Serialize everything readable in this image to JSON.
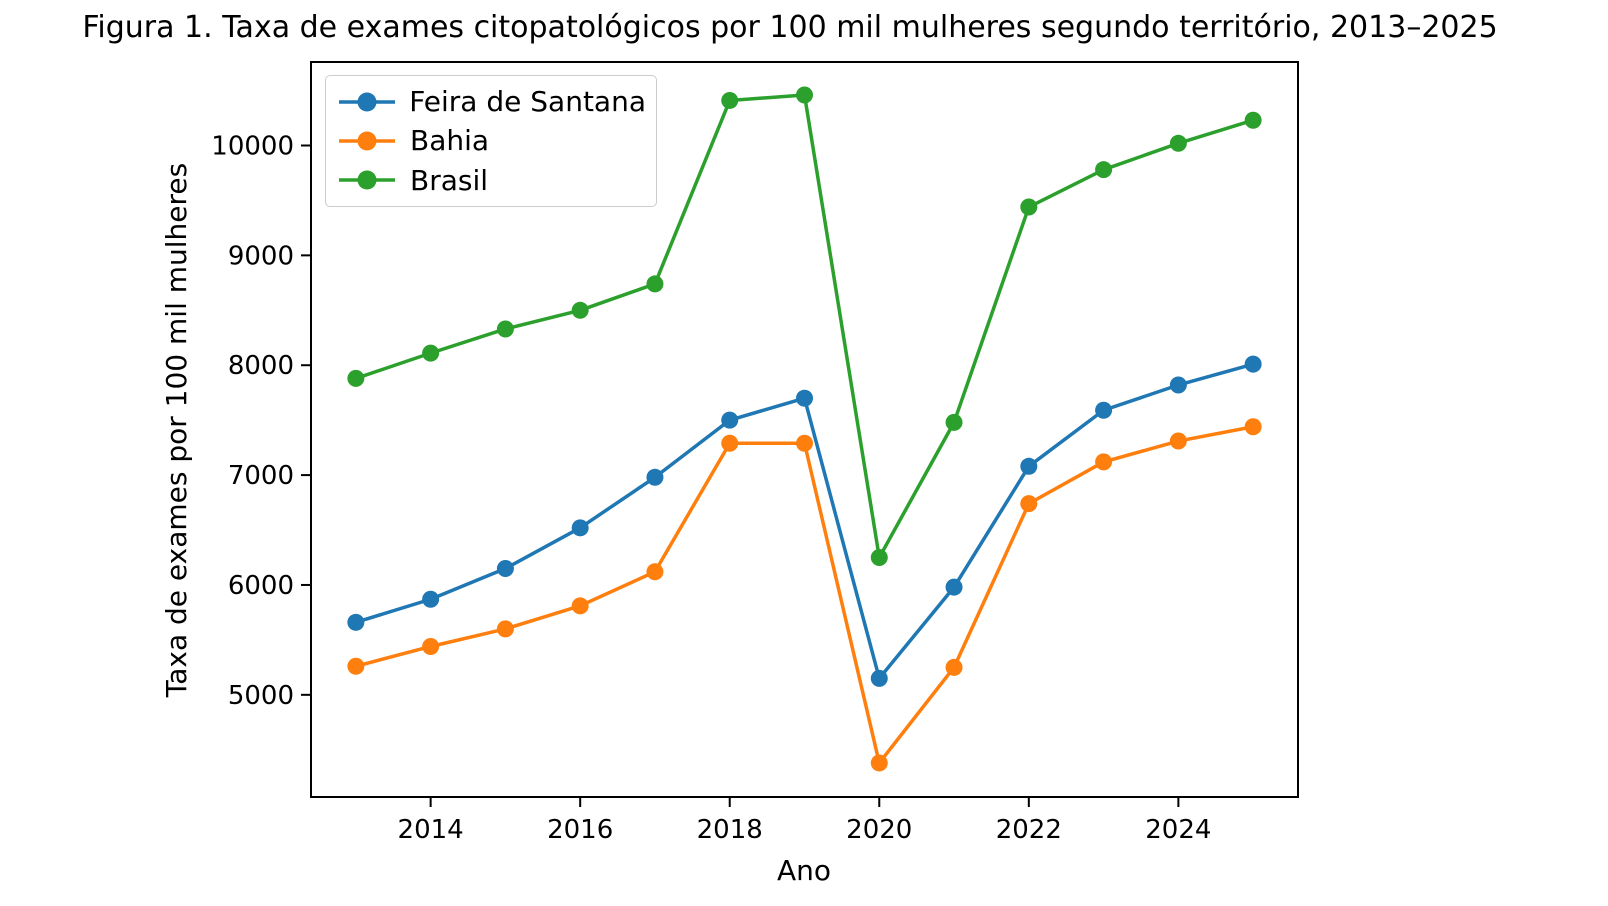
{
  "chart_data": {
    "type": "line",
    "title": "Figura 1. Taxa de exames citopatológicos por 100 mil mulheres segundo território, 2013–2025",
    "xlabel": "Ano",
    "ylabel": "Taxa de exames por 100 mil mulheres",
    "x": [
      2013,
      2014,
      2015,
      2016,
      2017,
      2018,
      2019,
      2020,
      2021,
      2022,
      2023,
      2024,
      2025
    ],
    "series": [
      {
        "name": "Feira de Santana",
        "color": "#1f77b4",
        "values": [
          5660,
          5870,
          6150,
          6520,
          6980,
          7500,
          7700,
          5150,
          5980,
          7080,
          7590,
          7820,
          8010
        ]
      },
      {
        "name": "Bahia",
        "color": "#ff7f0e",
        "values": [
          5260,
          5440,
          5600,
          5810,
          6120,
          7290,
          7290,
          4380,
          5250,
          6740,
          7120,
          7310,
          7440
        ]
      },
      {
        "name": "Brasil",
        "color": "#2ca02c",
        "values": [
          7880,
          8110,
          8330,
          8500,
          8740,
          10410,
          10460,
          6250,
          7480,
          9440,
          9780,
          10020,
          10230
        ]
      }
    ],
    "xticks": [
      2014,
      2016,
      2018,
      2020,
      2022,
      2024
    ],
    "yticks": [
      5000,
      6000,
      7000,
      8000,
      9000,
      10000
    ],
    "xlim": [
      2012.4,
      2025.6
    ],
    "ylim": [
      4070,
      10760
    ],
    "grid": false,
    "legend_position": "upper left",
    "axis_color": "#000000",
    "background_color": "#ffffff"
  }
}
